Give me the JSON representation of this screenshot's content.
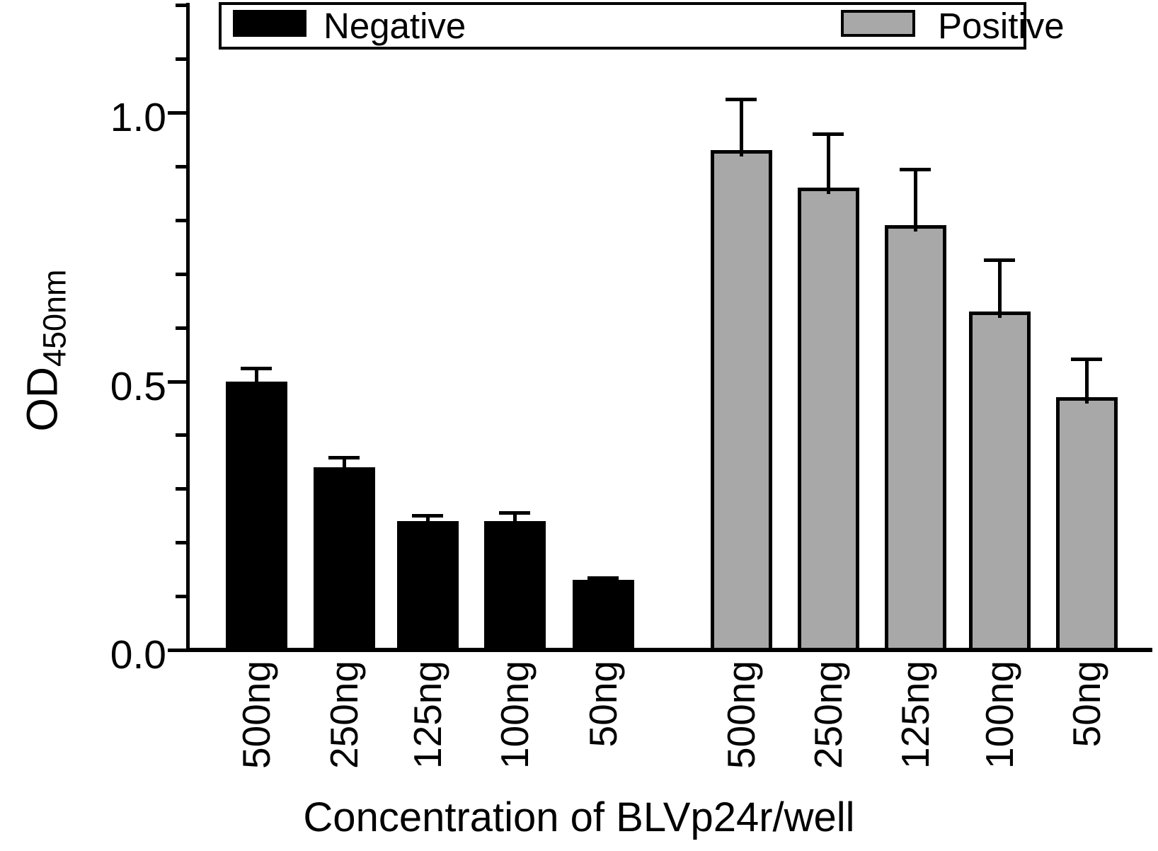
{
  "chart_data": {
    "type": "bar",
    "title": "",
    "xlabel": "Concentration of BLVp24r/well",
    "ylabel": "OD",
    "ylabel_subscript": "450nm",
    "categories": [
      "500ng",
      "250ng",
      "125ng",
      "100ng",
      "50ng"
    ],
    "series": [
      {
        "name": "Negative",
        "color": "#000000",
        "values": [
          0.5,
          0.34,
          0.24,
          0.24,
          0.13
        ],
        "errors": [
          0.025,
          0.018,
          0.01,
          0.015,
          0.005
        ]
      },
      {
        "name": "Positive",
        "color": "#A8A8A8",
        "values": [
          0.93,
          0.86,
          0.79,
          0.63,
          0.47
        ],
        "errors": [
          0.095,
          0.1,
          0.105,
          0.096,
          0.072
        ]
      }
    ],
    "ylim": [
      0.0,
      1.2
    ],
    "yticks_major": [
      {
        "value": 0.0,
        "label": "0.0"
      },
      {
        "value": 0.5,
        "label": "0.5"
      },
      {
        "value": 1.0,
        "label": "1.0"
      }
    ],
    "ytick_minor_step": 0.1,
    "error_bars": "upper only",
    "legend_position": "top",
    "grid": false
  }
}
